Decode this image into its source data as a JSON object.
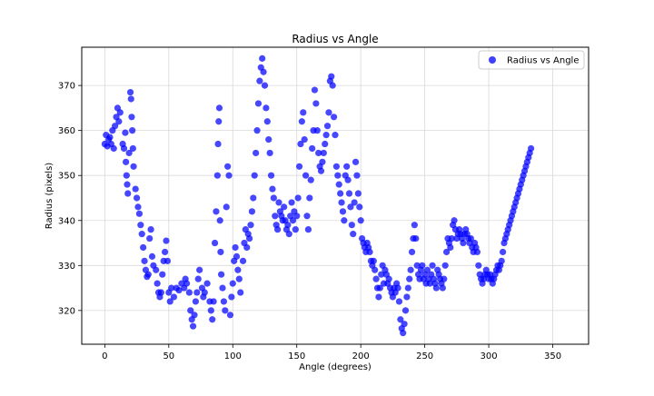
{
  "chart_data": {
    "type": "scatter",
    "title": "Radius vs Angle",
    "xlabel": "Angle (degrees)",
    "ylabel": "Radius (pixels)",
    "xlim": [
      -18,
      378
    ],
    "ylim": [
      312.5,
      378.5
    ],
    "xticks": [
      0,
      50,
      100,
      150,
      200,
      250,
      300,
      350
    ],
    "yticks": [
      320,
      330,
      340,
      350,
      360,
      370
    ],
    "xtick_labels": [
      "0",
      "50",
      "100",
      "150",
      "200",
      "250",
      "300",
      "350"
    ],
    "ytick_labels": [
      "320",
      "330",
      "340",
      "350",
      "360",
      "370"
    ],
    "grid": true,
    "legend_position": "top-right",
    "marker_color": "#0000ff",
    "series": [
      {
        "name": "Radius vs Angle",
        "points": [
          [
            0,
            357
          ],
          [
            1,
            359
          ],
          [
            2,
            356.5
          ],
          [
            3,
            358
          ],
          [
            4,
            358.5
          ],
          [
            5,
            357
          ],
          [
            6,
            360
          ],
          [
            7,
            356
          ],
          [
            8,
            361
          ],
          [
            9,
            363
          ],
          [
            10,
            365
          ],
          [
            11,
            362
          ],
          [
            12,
            364
          ],
          [
            14,
            357
          ],
          [
            15,
            356
          ],
          [
            16,
            359.5
          ],
          [
            16.5,
            353
          ],
          [
            17,
            350
          ],
          [
            17.5,
            348
          ],
          [
            18,
            346
          ],
          [
            19,
            355
          ],
          [
            20,
            368.5
          ],
          [
            20.5,
            367
          ],
          [
            21,
            363
          ],
          [
            21.5,
            360
          ],
          [
            22,
            356
          ],
          [
            22.5,
            352
          ],
          [
            24,
            347
          ],
          [
            25,
            345
          ],
          [
            26,
            343
          ],
          [
            27,
            341.5
          ],
          [
            28,
            339
          ],
          [
            29,
            337
          ],
          [
            30,
            334
          ],
          [
            31,
            331
          ],
          [
            32,
            329
          ],
          [
            33,
            327.5
          ],
          [
            34,
            328
          ],
          [
            35,
            336
          ],
          [
            36,
            338
          ],
          [
            37,
            332
          ],
          [
            38,
            330
          ],
          [
            40,
            329
          ],
          [
            41,
            326
          ],
          [
            42,
            324
          ],
          [
            43,
            323
          ],
          [
            44,
            324
          ],
          [
            45,
            328
          ],
          [
            46,
            331
          ],
          [
            47,
            333
          ],
          [
            48,
            335.5
          ],
          [
            49,
            331
          ],
          [
            50,
            324
          ],
          [
            51,
            322
          ],
          [
            52,
            325
          ],
          [
            54,
            323
          ],
          [
            56,
            325
          ],
          [
            58,
            324.5
          ],
          [
            60,
            326
          ],
          [
            62,
            325
          ],
          [
            63,
            327
          ],
          [
            64,
            326
          ],
          [
            66,
            324
          ],
          [
            67,
            320
          ],
          [
            68,
            318
          ],
          [
            69,
            316.5
          ],
          [
            70,
            319
          ],
          [
            71,
            322
          ],
          [
            72,
            324
          ],
          [
            73,
            327
          ],
          [
            74,
            329
          ],
          [
            76,
            325
          ],
          [
            77,
            323
          ],
          [
            78,
            324
          ],
          [
            80,
            326
          ],
          [
            82,
            322
          ],
          [
            83,
            320
          ],
          [
            84,
            318
          ],
          [
            85,
            322
          ],
          [
            86,
            335
          ],
          [
            87,
            342
          ],
          [
            88,
            350
          ],
          [
            88.5,
            357
          ],
          [
            89,
            362
          ],
          [
            89.5,
            365
          ],
          [
            90,
            340
          ],
          [
            90.5,
            333
          ],
          [
            91,
            328
          ],
          [
            92,
            325
          ],
          [
            93,
            322
          ],
          [
            94,
            320
          ],
          [
            95,
            343
          ],
          [
            96,
            352
          ],
          [
            97,
            350
          ],
          [
            98,
            319
          ],
          [
            99,
            323
          ],
          [
            100,
            326
          ],
          [
            101,
            331
          ],
          [
            102,
            334
          ],
          [
            103,
            332
          ],
          [
            104,
            329
          ],
          [
            105,
            327
          ],
          [
            106,
            324
          ],
          [
            108,
            331
          ],
          [
            109,
            335
          ],
          [
            110,
            338
          ],
          [
            111,
            334
          ],
          [
            112,
            337
          ],
          [
            113,
            336
          ],
          [
            114,
            339
          ],
          [
            115,
            342
          ],
          [
            116,
            345
          ],
          [
            117,
            350
          ],
          [
            118,
            355
          ],
          [
            119,
            360
          ],
          [
            120,
            366
          ],
          [
            121,
            371
          ],
          [
            122,
            374
          ],
          [
            123,
            376
          ],
          [
            124,
            373
          ],
          [
            125,
            370
          ],
          [
            126,
            365
          ],
          [
            127,
            362
          ],
          [
            128,
            358
          ],
          [
            129,
            355
          ],
          [
            130,
            350
          ],
          [
            131,
            347
          ],
          [
            132,
            345
          ],
          [
            133,
            341
          ],
          [
            134,
            339
          ],
          [
            135,
            338
          ],
          [
            136,
            344
          ],
          [
            137,
            342
          ],
          [
            138,
            341
          ],
          [
            139,
            340
          ],
          [
            140,
            343
          ],
          [
            141,
            340
          ],
          [
            142,
            338
          ],
          [
            143,
            339
          ],
          [
            144,
            337
          ],
          [
            145,
            341
          ],
          [
            146,
            344
          ],
          [
            147,
            340
          ],
          [
            148,
            342
          ],
          [
            149,
            338
          ],
          [
            150,
            341
          ],
          [
            151,
            345
          ],
          [
            152,
            352
          ],
          [
            153,
            357
          ],
          [
            154,
            362
          ],
          [
            155,
            364
          ],
          [
            156,
            358
          ],
          [
            157,
            350
          ],
          [
            158,
            341
          ],
          [
            159,
            338
          ],
          [
            160,
            345
          ],
          [
            161,
            349
          ],
          [
            162,
            356
          ],
          [
            163,
            360
          ],
          [
            164,
            369
          ],
          [
            165,
            366
          ],
          [
            166,
            360
          ],
          [
            167,
            355
          ],
          [
            168,
            352
          ],
          [
            169,
            351
          ],
          [
            170,
            353
          ],
          [
            171,
            355
          ],
          [
            172,
            357
          ],
          [
            173,
            359
          ],
          [
            174,
            361
          ],
          [
            175,
            364
          ],
          [
            176,
            371
          ],
          [
            177,
            372
          ],
          [
            178,
            370
          ],
          [
            179,
            363
          ],
          [
            180,
            359
          ],
          [
            181,
            352
          ],
          [
            182,
            350
          ],
          [
            183,
            348
          ],
          [
            184,
            346
          ],
          [
            185,
            344
          ],
          [
            186,
            342
          ],
          [
            187,
            340
          ],
          [
            188,
            350
          ],
          [
            189,
            352
          ],
          [
            190,
            349
          ],
          [
            191,
            346
          ],
          [
            192,
            343
          ],
          [
            193,
            339
          ],
          [
            194,
            337
          ],
          [
            195,
            344
          ],
          [
            196,
            353
          ],
          [
            197,
            350
          ],
          [
            198,
            346
          ],
          [
            199,
            343
          ],
          [
            200,
            340
          ],
          [
            201,
            336
          ],
          [
            202,
            335
          ],
          [
            203,
            334
          ],
          [
            204,
            333
          ],
          [
            205,
            335
          ],
          [
            206,
            334
          ],
          [
            207,
            333
          ],
          [
            208,
            331
          ],
          [
            209,
            330
          ],
          [
            210,
            331
          ],
          [
            211,
            329
          ],
          [
            212,
            327
          ],
          [
            213,
            325
          ],
          [
            214,
            323
          ],
          [
            215,
            325
          ],
          [
            216,
            328
          ],
          [
            217,
            330
          ],
          [
            218,
            326
          ],
          [
            219,
            329
          ],
          [
            220,
            328
          ],
          [
            221,
            326
          ],
          [
            222,
            327
          ],
          [
            223,
            325
          ],
          [
            224,
            324
          ],
          [
            225,
            323
          ],
          [
            226,
            325
          ],
          [
            227,
            324
          ],
          [
            228,
            326
          ],
          [
            229,
            325
          ],
          [
            230,
            322
          ],
          [
            231,
            318
          ],
          [
            232,
            316
          ],
          [
            233,
            315
          ],
          [
            234,
            317
          ],
          [
            235,
            320
          ],
          [
            236,
            323
          ],
          [
            237,
            325
          ],
          [
            238,
            327
          ],
          [
            239,
            329
          ],
          [
            240,
            333
          ],
          [
            241,
            336
          ],
          [
            242,
            339
          ],
          [
            243,
            336
          ],
          [
            244,
            330
          ],
          [
            245,
            328
          ],
          [
            246,
            327
          ],
          [
            247,
            329
          ],
          [
            248,
            330
          ],
          [
            249,
            327
          ],
          [
            250,
            328
          ],
          [
            251,
            326
          ],
          [
            252,
            329
          ],
          [
            253,
            327
          ],
          [
            254,
            326
          ],
          [
            255,
            328
          ],
          [
            256,
            330
          ],
          [
            257,
            327
          ],
          [
            258,
            326
          ],
          [
            259,
            325
          ],
          [
            260,
            329
          ],
          [
            261,
            328
          ],
          [
            262,
            327
          ],
          [
            263,
            326
          ],
          [
            264,
            325
          ],
          [
            265,
            327
          ],
          [
            266,
            330
          ],
          [
            267,
            333
          ],
          [
            268,
            336
          ],
          [
            269,
            335
          ],
          [
            270,
            334
          ],
          [
            271,
            336
          ],
          [
            272,
            339
          ],
          [
            273,
            340
          ],
          [
            274,
            338
          ],
          [
            275,
            336
          ],
          [
            276,
            337
          ],
          [
            277,
            338
          ],
          [
            278,
            337
          ],
          [
            279,
            336
          ],
          [
            280,
            335
          ],
          [
            281,
            337
          ],
          [
            282,
            338
          ],
          [
            283,
            337
          ],
          [
            284,
            336
          ],
          [
            285,
            335
          ],
          [
            286,
            336
          ],
          [
            287,
            334
          ],
          [
            288,
            333
          ],
          [
            289,
            335
          ],
          [
            290,
            334
          ],
          [
            291,
            333
          ],
          [
            292,
            330
          ],
          [
            293,
            328
          ],
          [
            294,
            327
          ],
          [
            295,
            326
          ],
          [
            296,
            327
          ],
          [
            297,
            328
          ],
          [
            298,
            329
          ],
          [
            299,
            328
          ],
          [
            300,
            327
          ],
          [
            301,
            328
          ],
          [
            302,
            327
          ],
          [
            303,
            326
          ],
          [
            304,
            327
          ],
          [
            305,
            328
          ],
          [
            306,
            329
          ],
          [
            307,
            330
          ],
          [
            308,
            329
          ],
          [
            309,
            330
          ],
          [
            310,
            331
          ],
          [
            311,
            333
          ],
          [
            312,
            335
          ],
          [
            313,
            336
          ],
          [
            314,
            337
          ],
          [
            315,
            338
          ],
          [
            316,
            339
          ],
          [
            317,
            340
          ],
          [
            318,
            341
          ],
          [
            319,
            342
          ],
          [
            320,
            343
          ],
          [
            321,
            344
          ],
          [
            322,
            345
          ],
          [
            323,
            346
          ],
          [
            324,
            347
          ],
          [
            325,
            348
          ],
          [
            326,
            349
          ],
          [
            327,
            350
          ],
          [
            328,
            351
          ],
          [
            329,
            352
          ],
          [
            330,
            353
          ],
          [
            331,
            354
          ],
          [
            332,
            355
          ],
          [
            333,
            356
          ]
        ]
      }
    ]
  }
}
